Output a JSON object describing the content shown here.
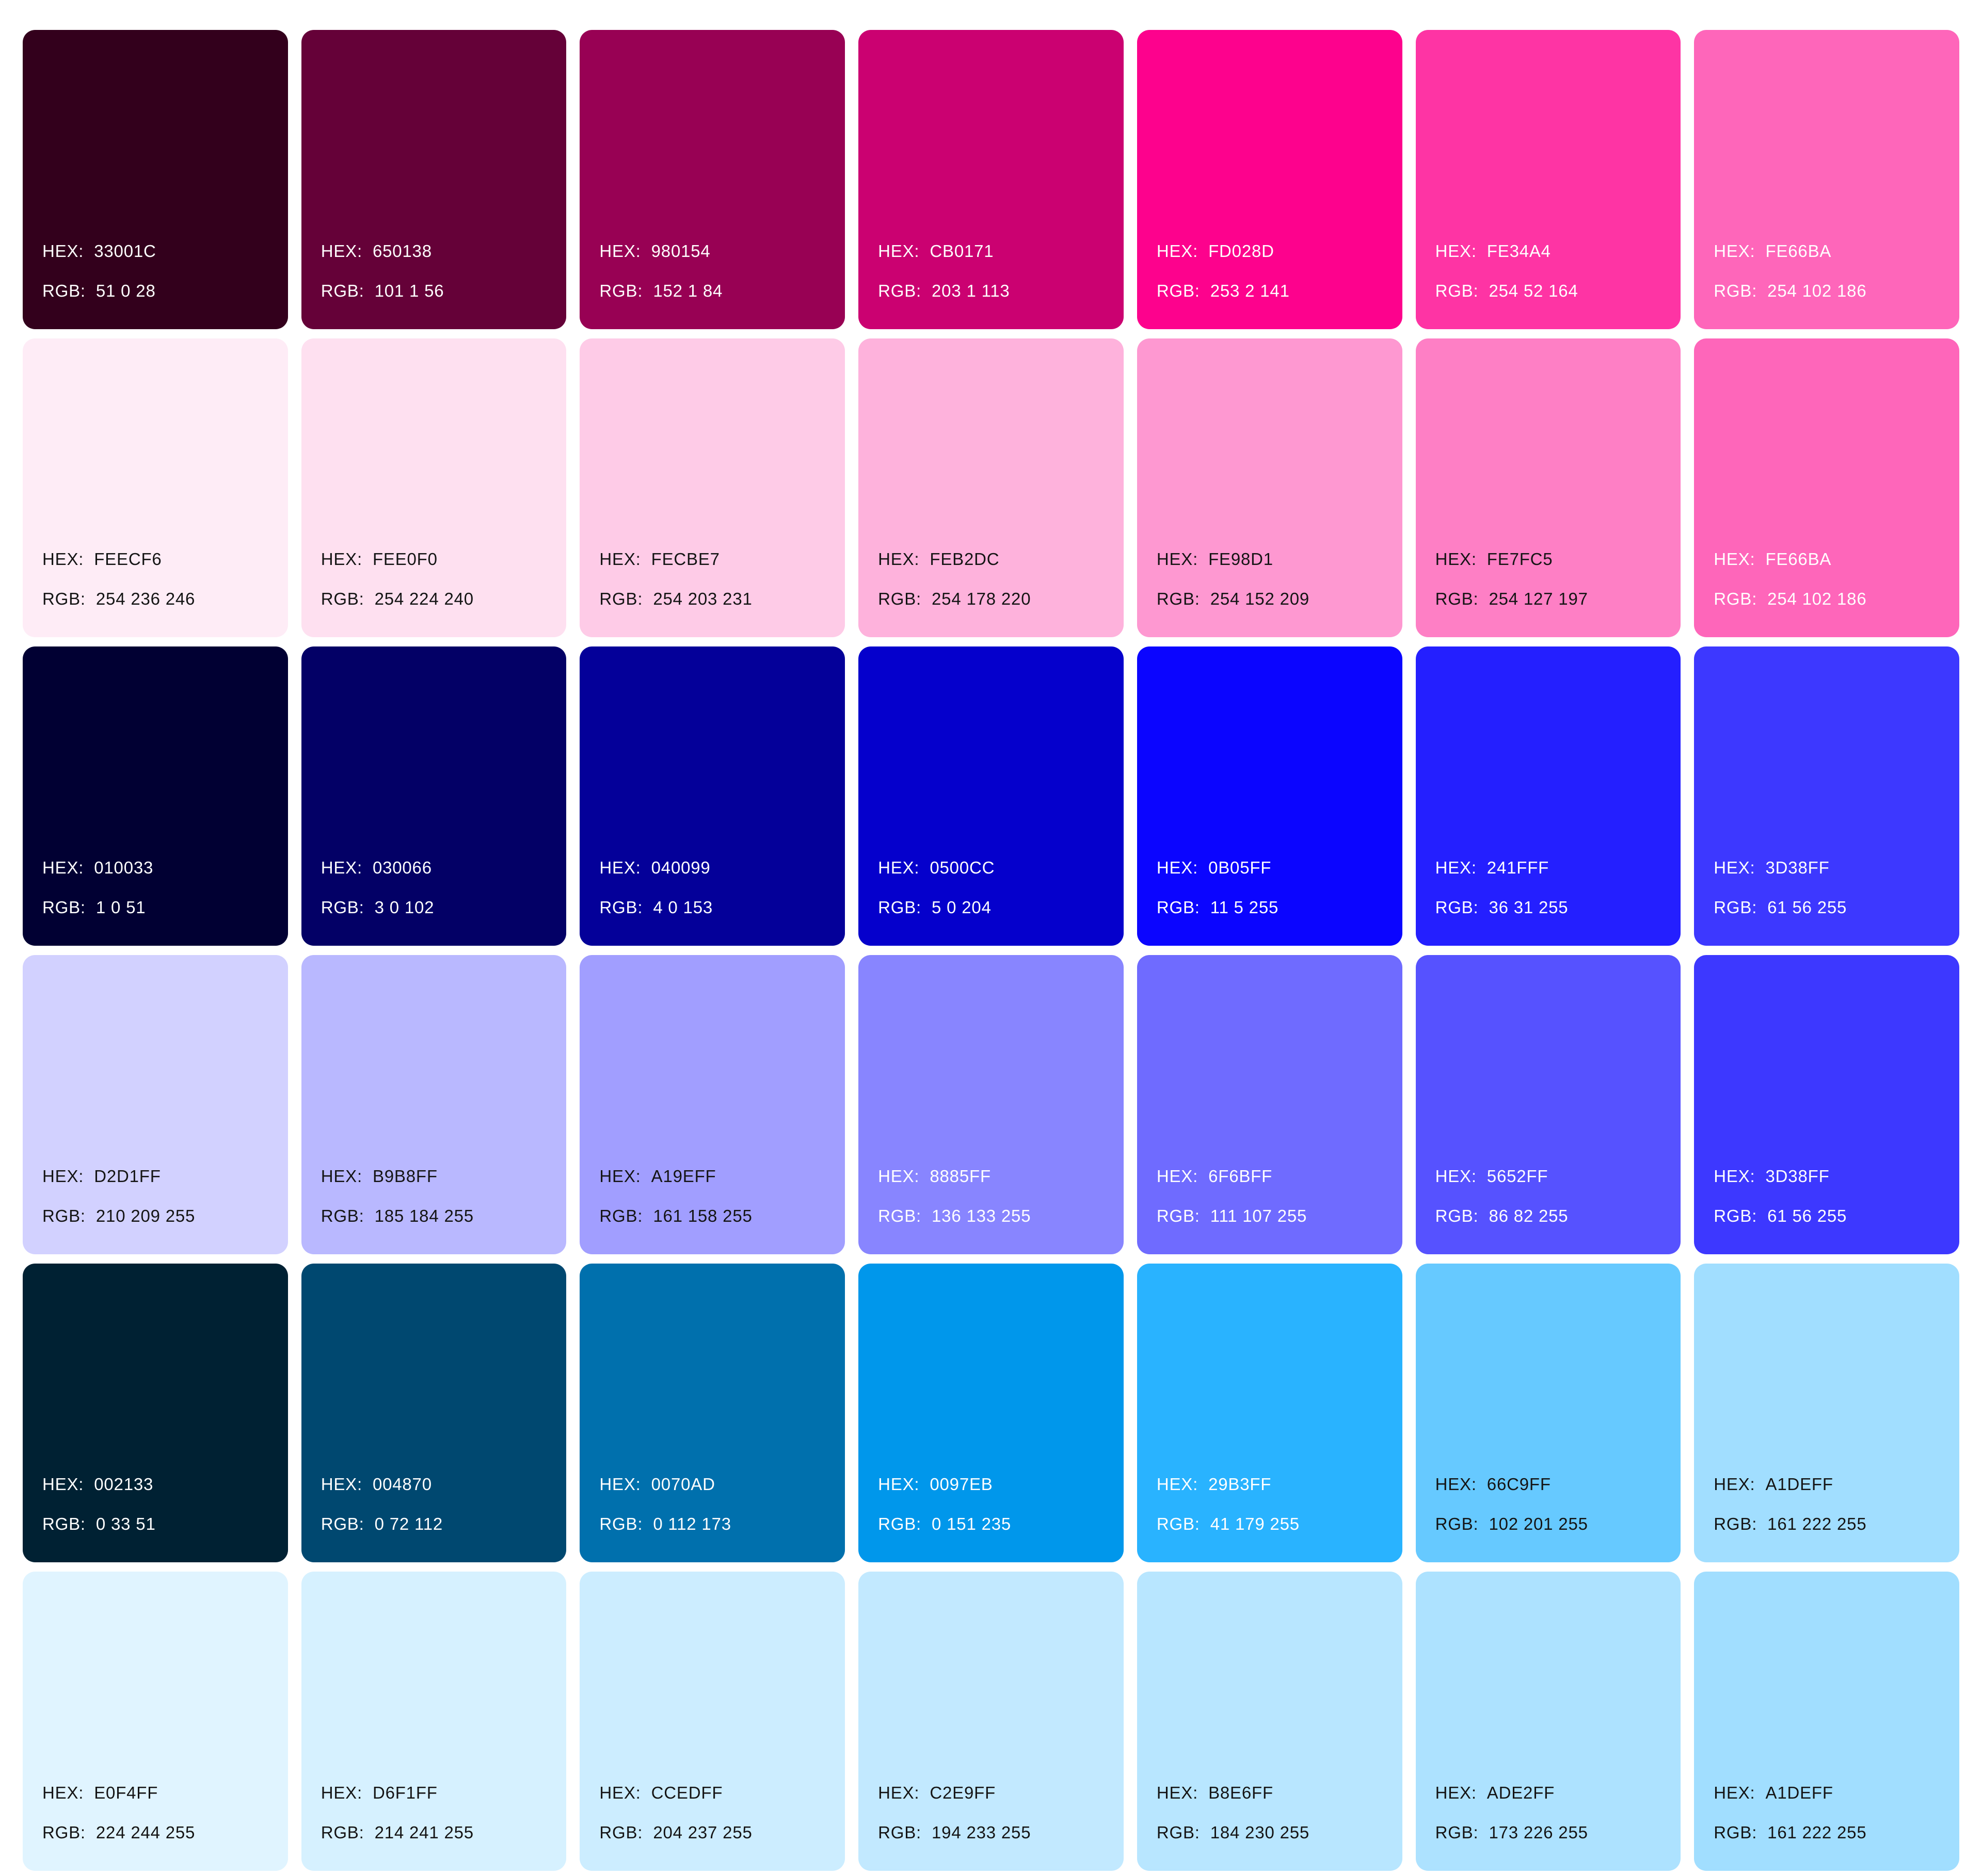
{
  "palette": {
    "hex_prefix": "HEX:",
    "rgb_prefix": "RGB:",
    "text_light": "#FFFFFF",
    "text_dark": "#141414",
    "background": "#FFFFFF",
    "rows": [
      {
        "swatches": [
          {
            "hex": "33001C",
            "rgb": "51 0 28",
            "text": "light"
          },
          {
            "hex": "650138",
            "rgb": "101 1 56",
            "text": "light"
          },
          {
            "hex": "980154",
            "rgb": "152 1 84",
            "text": "light"
          },
          {
            "hex": "CB0171",
            "rgb": "203 1 113",
            "text": "light"
          },
          {
            "hex": "FD028D",
            "rgb": "253 2 141",
            "text": "light"
          },
          {
            "hex": "FE34A4",
            "rgb": "254 52 164",
            "text": "light"
          },
          {
            "hex": "FE66BA",
            "rgb": "254 102 186",
            "text": "light"
          }
        ]
      },
      {
        "swatches": [
          {
            "hex": "FEECF6",
            "rgb": "254 236 246",
            "text": "dark"
          },
          {
            "hex": "FEE0F0",
            "rgb": "254 224 240",
            "text": "dark"
          },
          {
            "hex": "FECBE7",
            "rgb": "254 203 231",
            "text": "dark"
          },
          {
            "hex": "FEB2DC",
            "rgb": "254 178 220",
            "text": "dark"
          },
          {
            "hex": "FE98D1",
            "rgb": "254 152 209",
            "text": "dark"
          },
          {
            "hex": "FE7FC5",
            "rgb": "254 127 197",
            "text": "dark"
          },
          {
            "hex": "FE66BA",
            "rgb": "254 102 186",
            "text": "light"
          }
        ]
      },
      {
        "swatches": [
          {
            "hex": "010033",
            "rgb": "1 0 51",
            "text": "light"
          },
          {
            "hex": "030066",
            "rgb": "3 0 102",
            "text": "light"
          },
          {
            "hex": "040099",
            "rgb": "4 0 153",
            "text": "light"
          },
          {
            "hex": "0500CC",
            "rgb": "5 0 204",
            "text": "light"
          },
          {
            "hex": "0B05FF",
            "rgb": "11 5 255",
            "text": "light"
          },
          {
            "hex": "241FFF",
            "rgb": "36 31 255",
            "text": "light"
          },
          {
            "hex": "3D38FF",
            "rgb": "61 56 255",
            "text": "light"
          }
        ]
      },
      {
        "swatches": [
          {
            "hex": "D2D1FF",
            "rgb": "210 209 255",
            "text": "dark"
          },
          {
            "hex": "B9B8FF",
            "rgb": "185 184 255",
            "text": "dark"
          },
          {
            "hex": "A19EFF",
            "rgb": "161 158 255",
            "text": "dark"
          },
          {
            "hex": "8885FF",
            "rgb": "136 133 255",
            "text": "light"
          },
          {
            "hex": "6F6BFF",
            "rgb": "111 107 255",
            "text": "light"
          },
          {
            "hex": "5652FF",
            "rgb": "86 82 255",
            "text": "light"
          },
          {
            "hex": "3D38FF",
            "rgb": "61 56 255",
            "text": "light"
          }
        ]
      },
      {
        "swatches": [
          {
            "hex": "002133",
            "rgb": "0 33 51",
            "text": "light"
          },
          {
            "hex": "004870",
            "rgb": "0 72 112",
            "text": "light"
          },
          {
            "hex": "0070AD",
            "rgb": "0 112 173",
            "text": "light"
          },
          {
            "hex": "0097EB",
            "rgb": "0 151 235",
            "text": "light"
          },
          {
            "hex": "29B3FF",
            "rgb": "41 179 255",
            "text": "light"
          },
          {
            "hex": "66C9FF",
            "rgb": "102 201 255",
            "text": "dark"
          },
          {
            "hex": "A1DEFF",
            "rgb": "161 222 255",
            "text": "dark"
          }
        ]
      },
      {
        "swatches": [
          {
            "hex": "E0F4FF",
            "rgb": "224 244 255",
            "text": "dark"
          },
          {
            "hex": "D6F1FF",
            "rgb": "214 241 255",
            "text": "dark"
          },
          {
            "hex": "CCEDFF",
            "rgb": "204 237 255",
            "text": "dark"
          },
          {
            "hex": "C2E9FF",
            "rgb": "194 233 255",
            "text": "dark"
          },
          {
            "hex": "B8E6FF",
            "rgb": "184 230 255",
            "text": "dark"
          },
          {
            "hex": "ADE2FF",
            "rgb": "173 226 255",
            "text": "dark"
          },
          {
            "hex": "A1DEFF",
            "rgb": "161 222 255",
            "text": "dark"
          }
        ]
      }
    ]
  }
}
